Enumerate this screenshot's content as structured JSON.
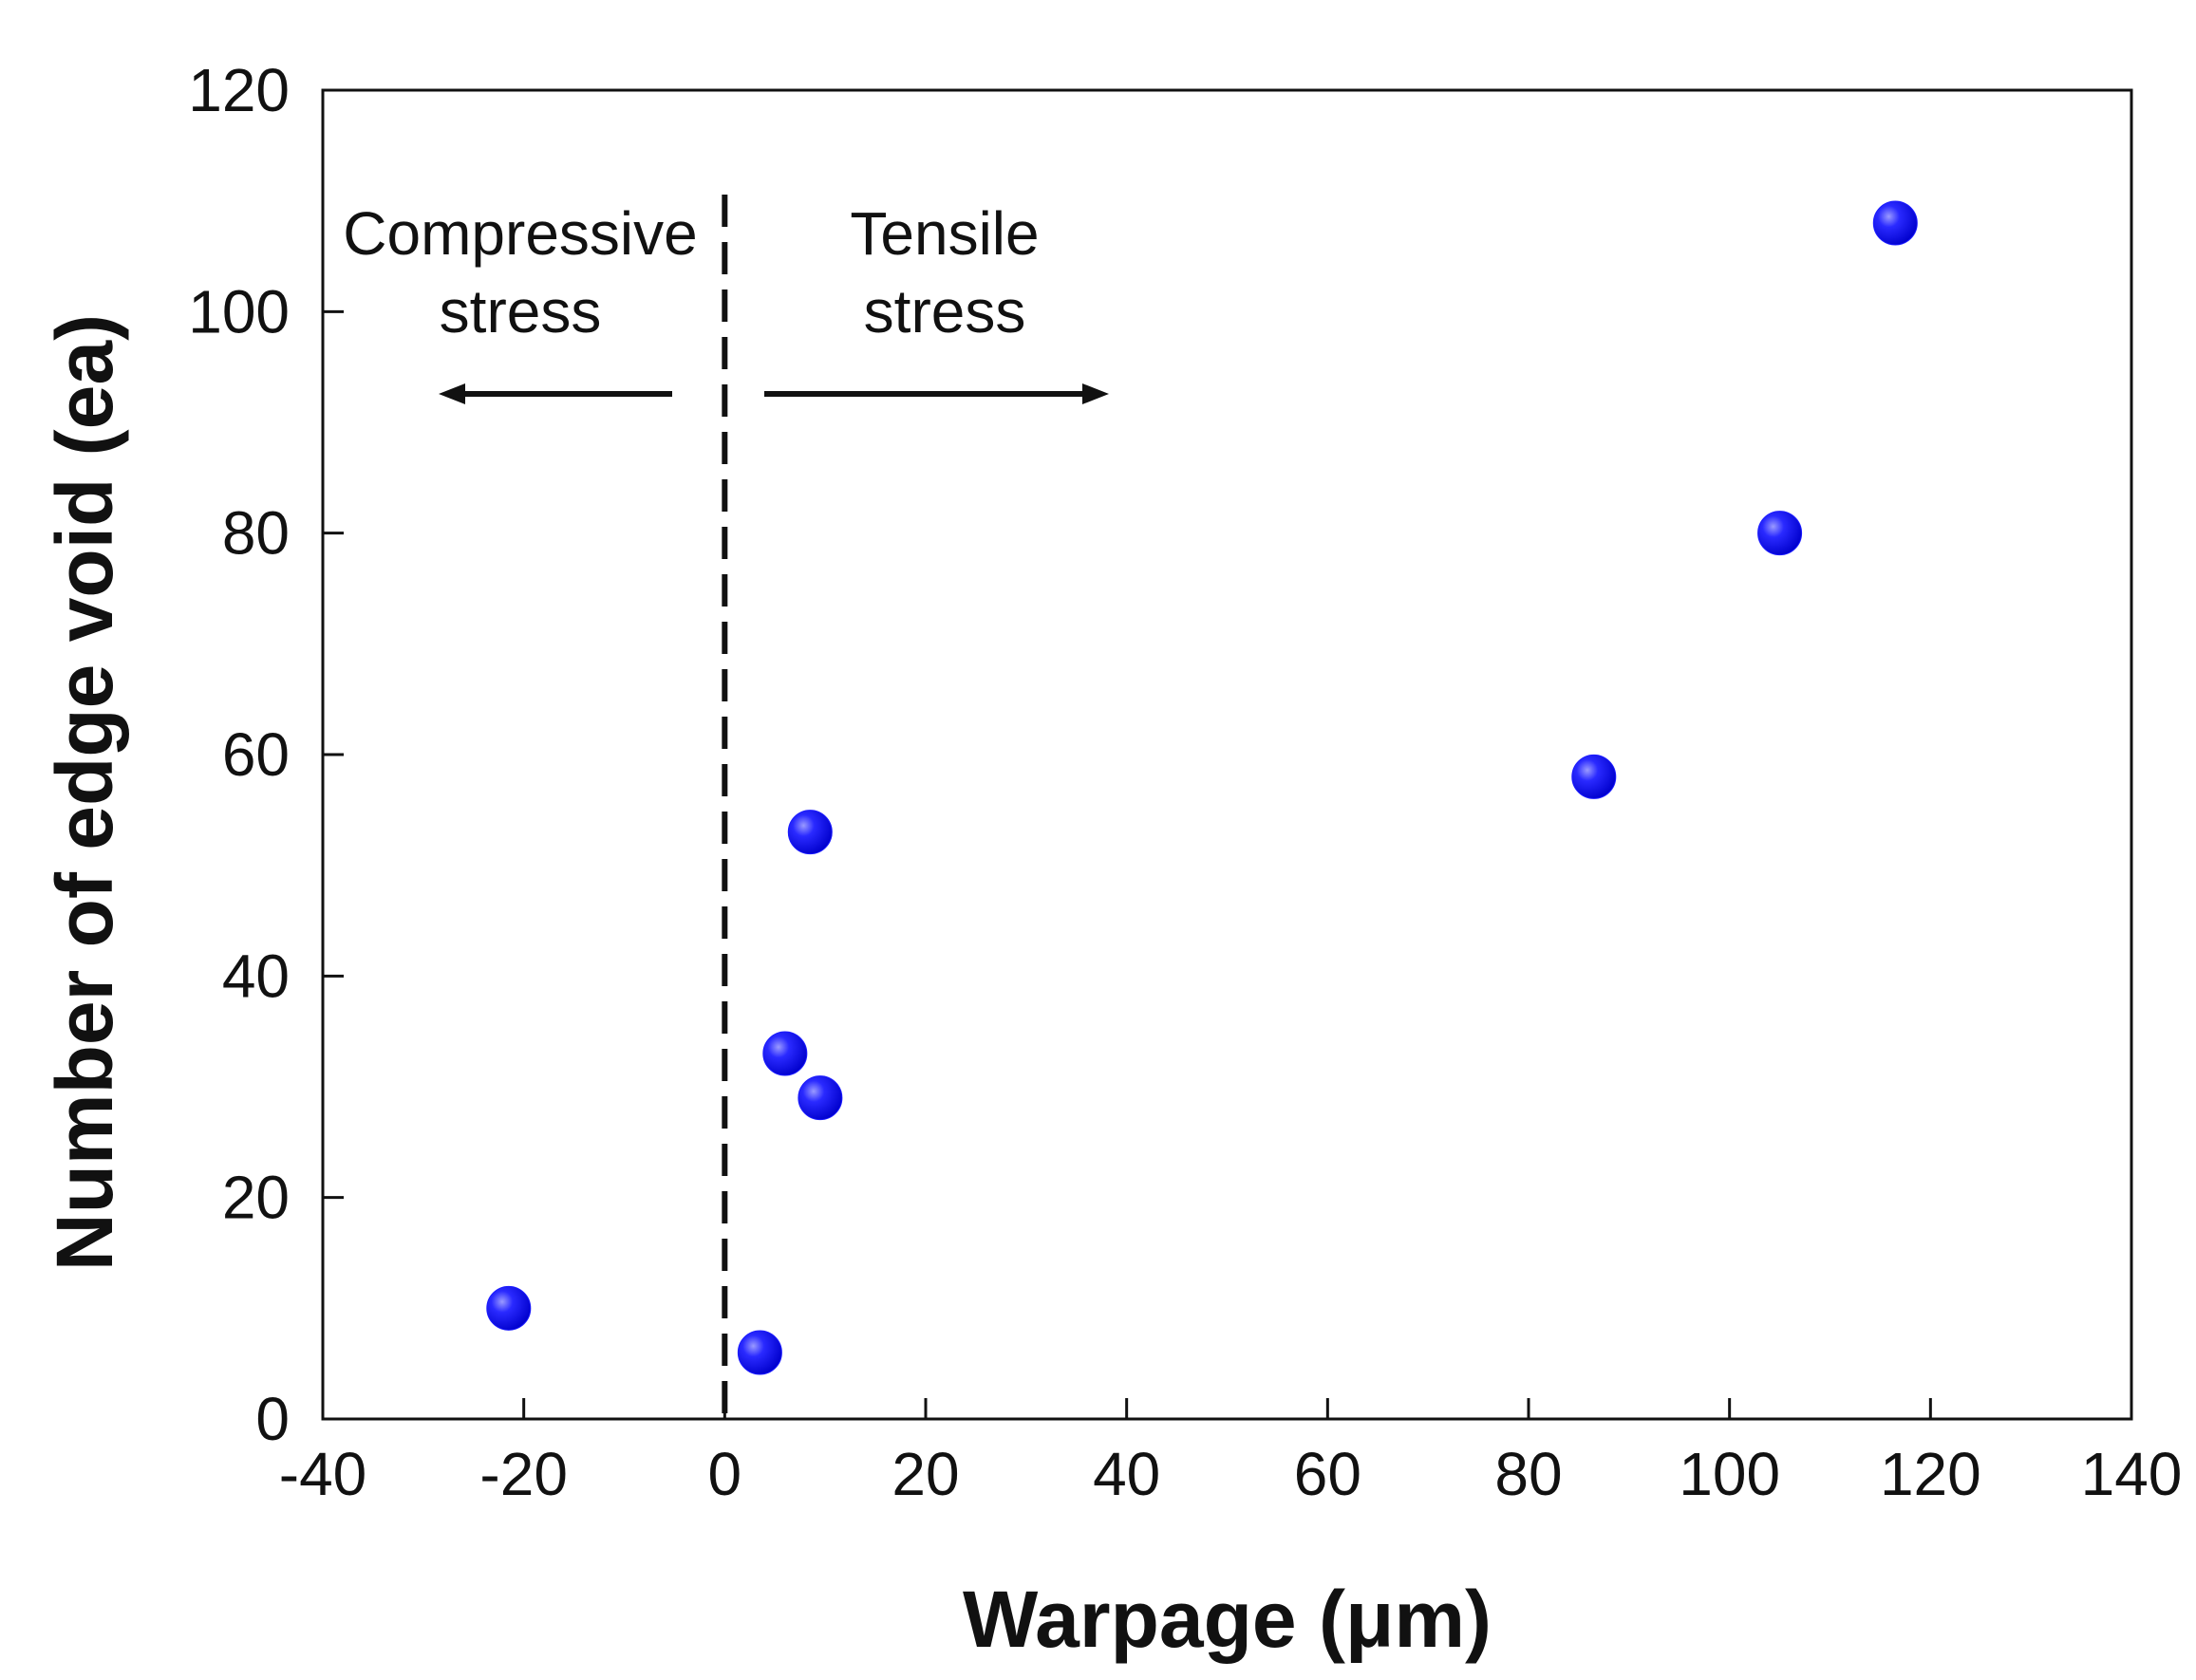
{
  "chart_data": {
    "type": "scatter",
    "title": "",
    "xlabel": "Warpage (μm)",
    "ylabel": "Number of edge void (ea)",
    "xlim": [
      -40,
      140
    ],
    "ylim": [
      0,
      120
    ],
    "xticks": [
      -40,
      -20,
      0,
      20,
      40,
      60,
      80,
      100,
      120,
      140
    ],
    "yticks": [
      0,
      20,
      40,
      60,
      80,
      100,
      120
    ],
    "grid": false,
    "series": [
      {
        "name": "edge void",
        "color": "#1a1aff",
        "points": [
          {
            "x": -21.5,
            "y": 10
          },
          {
            "x": 3.5,
            "y": 6
          },
          {
            "x": 6,
            "y": 33
          },
          {
            "x": 9.5,
            "y": 29
          },
          {
            "x": 8.5,
            "y": 53
          },
          {
            "x": 86.5,
            "y": 58
          },
          {
            "x": 105,
            "y": 80
          },
          {
            "x": 116.5,
            "y": 108
          }
        ]
      }
    ],
    "divider": {
      "x": 0,
      "style": "dashed"
    },
    "annotations": {
      "compressive": {
        "line1": "Compressive",
        "line2": "stress",
        "direction": "left"
      },
      "tensile": {
        "line1": "Tensile",
        "line2": "stress",
        "direction": "right"
      }
    }
  }
}
